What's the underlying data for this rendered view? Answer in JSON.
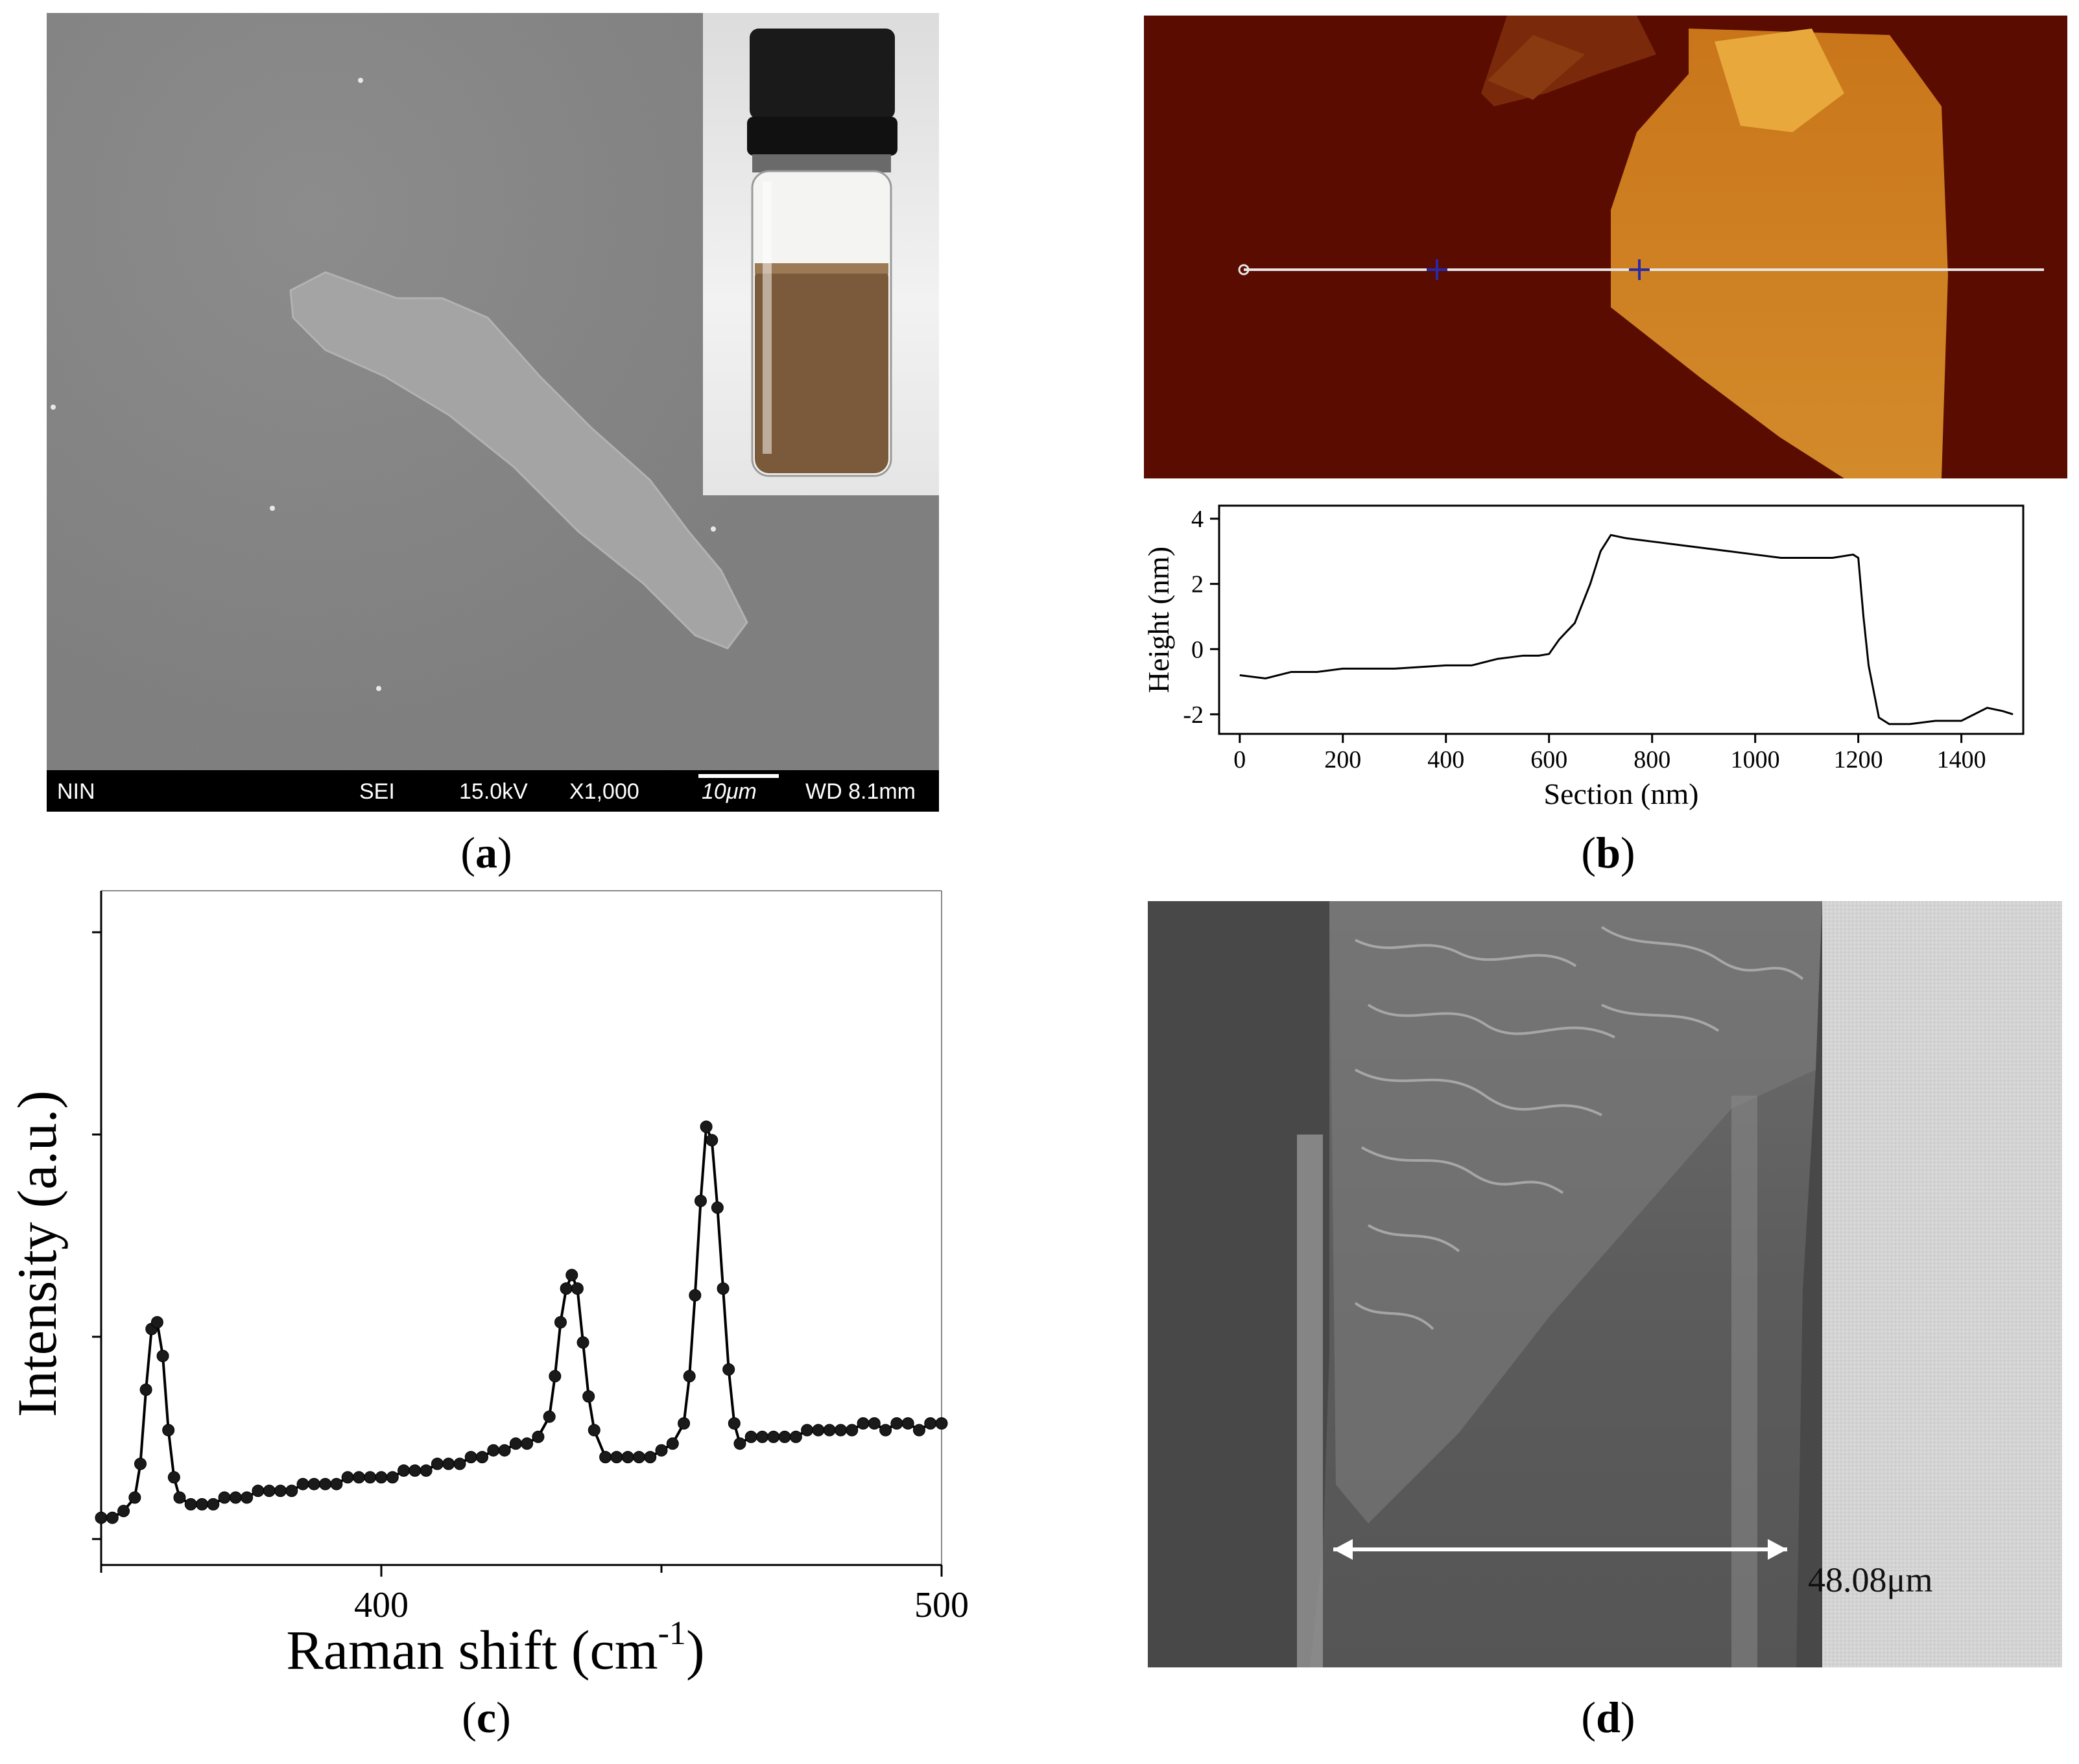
{
  "panels": {
    "a": {
      "caption_letter": "a",
      "sem_bar": {
        "label_left": "NIN",
        "mode": "SEI",
        "voltage": "15.0kV",
        "magnification": "X1,000",
        "scale": "10μm",
        "working_distance": "WD 8.1mm"
      }
    },
    "b": {
      "caption_letter": "b"
    },
    "c": {
      "caption_letter": "c"
    },
    "d": {
      "caption_letter": "d",
      "measurement": "48.08μm"
    }
  },
  "chart_data": [
    {
      "type": "line",
      "panel": "b",
      "xlabel": "Section (nm)",
      "ylabel": "Height (nm)",
      "xlim": [
        -40,
        1520
      ],
      "ylim": [
        -2.6,
        4.4
      ],
      "xticks": [
        0,
        200,
        400,
        600,
        800,
        1000,
        1200,
        1400
      ],
      "yticks": [
        -2,
        0,
        2,
        4
      ],
      "x": [
        0,
        50,
        100,
        150,
        200,
        250,
        300,
        350,
        400,
        450,
        500,
        550,
        580,
        600,
        620,
        650,
        680,
        700,
        720,
        750,
        800,
        850,
        900,
        950,
        1000,
        1050,
        1100,
        1150,
        1190,
        1200,
        1210,
        1220,
        1240,
        1260,
        1300,
        1350,
        1400,
        1450,
        1480,
        1500
      ],
      "y": [
        -0.8,
        -0.9,
        -0.7,
        -0.7,
        -0.6,
        -0.6,
        -0.6,
        -0.55,
        -0.5,
        -0.5,
        -0.3,
        -0.2,
        -0.2,
        -0.15,
        0.3,
        0.8,
        2.0,
        3.0,
        3.5,
        3.4,
        3.3,
        3.2,
        3.1,
        3.0,
        2.9,
        2.8,
        2.8,
        2.8,
        2.9,
        2.8,
        1.0,
        -0.5,
        -2.1,
        -2.3,
        -2.3,
        -2.2,
        -2.2,
        -1.8,
        -1.9,
        -2.0
      ]
    },
    {
      "type": "line",
      "panel": "c",
      "xlabel": "Raman shift (cm",
      "xlabel_sup": "-1",
      "xlabel_end": ")",
      "ylabel": "Intensity (a.u.)",
      "xlim": [
        350,
        500
      ],
      "ylim": [
        0,
        1
      ],
      "xticks": [
        400,
        500
      ],
      "minor_xticks": [
        350,
        450
      ],
      "x": [
        350,
        352,
        354,
        356,
        357,
        358,
        359,
        360,
        361,
        362,
        363,
        364,
        366,
        368,
        370,
        372,
        374,
        376,
        378,
        380,
        382,
        384,
        386,
        388,
        390,
        392,
        394,
        396,
        398,
        400,
        402,
        404,
        406,
        408,
        410,
        412,
        414,
        416,
        418,
        420,
        422,
        424,
        426,
        428,
        430,
        431,
        432,
        433,
        434,
        435,
        436,
        437,
        438,
        440,
        442,
        444,
        446,
        448,
        450,
        452,
        454,
        455,
        456,
        457,
        458,
        459,
        460,
        461,
        462,
        463,
        464,
        466,
        468,
        470,
        472,
        474,
        476,
        478,
        480,
        482,
        484,
        486,
        488,
        490,
        492,
        494,
        496,
        498,
        500
      ],
      "y": [
        0.07,
        0.07,
        0.08,
        0.1,
        0.15,
        0.26,
        0.35,
        0.36,
        0.31,
        0.2,
        0.13,
        0.1,
        0.09,
        0.09,
        0.09,
        0.1,
        0.1,
        0.1,
        0.11,
        0.11,
        0.11,
        0.11,
        0.12,
        0.12,
        0.12,
        0.12,
        0.13,
        0.13,
        0.13,
        0.13,
        0.13,
        0.14,
        0.14,
        0.14,
        0.15,
        0.15,
        0.15,
        0.16,
        0.16,
        0.17,
        0.17,
        0.18,
        0.18,
        0.19,
        0.22,
        0.28,
        0.36,
        0.41,
        0.43,
        0.41,
        0.33,
        0.25,
        0.2,
        0.16,
        0.16,
        0.16,
        0.16,
        0.16,
        0.17,
        0.18,
        0.21,
        0.28,
        0.4,
        0.54,
        0.65,
        0.63,
        0.53,
        0.41,
        0.29,
        0.21,
        0.18,
        0.19,
        0.19,
        0.19,
        0.19,
        0.19,
        0.2,
        0.2,
        0.2,
        0.2,
        0.2,
        0.21,
        0.21,
        0.2,
        0.21,
        0.21,
        0.2,
        0.21,
        0.21
      ]
    }
  ]
}
